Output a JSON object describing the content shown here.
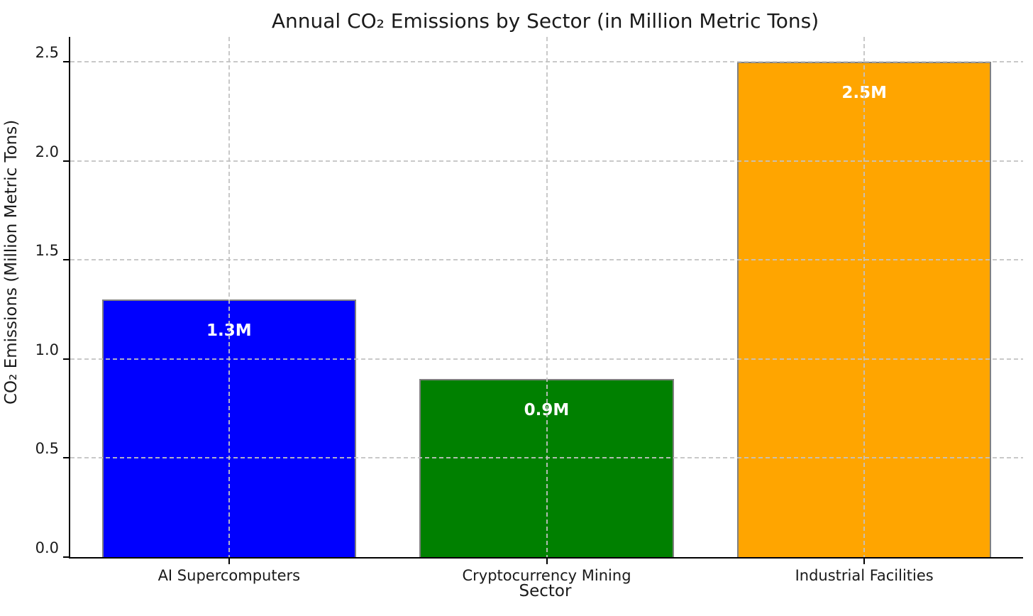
{
  "chart_data": {
    "type": "bar",
    "title": "Annual CO₂ Emissions by Sector (in Million Metric Tons)",
    "xlabel": "Sector",
    "ylabel": "CO₂ Emissions (Million Metric Tons)",
    "categories": [
      "AI Supercomputers",
      "Cryptocurrency Mining",
      "Industrial Facilities"
    ],
    "values": [
      1.3,
      0.9,
      2.5
    ],
    "bar_labels": [
      "1.3M",
      "0.9M",
      "2.5M"
    ],
    "bar_colors": [
      "#0000ff",
      "#008000",
      "#ffa500"
    ],
    "bar_edge_color": "#808080",
    "bar_label_color": "#ffffff",
    "yticks": [
      0.0,
      0.5,
      1.0,
      1.5,
      2.0,
      2.5
    ],
    "ytick_labels": [
      "0.0",
      "0.5",
      "1.0",
      "1.5",
      "2.0",
      "2.5"
    ],
    "ylim": [
      0,
      2.625
    ],
    "bar_width_fraction": 0.2667,
    "grid": true,
    "grid_style": "dashed",
    "legend": "none"
  }
}
